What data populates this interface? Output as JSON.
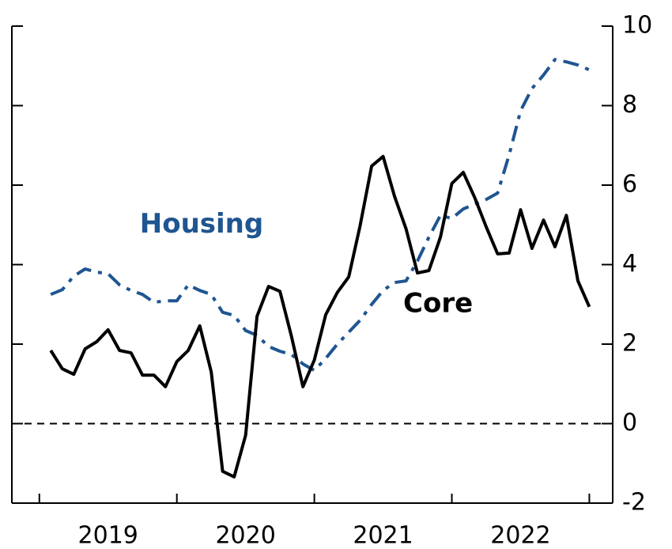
{
  "chart_data": {
    "type": "line",
    "x": [
      2019.083,
      2019.167,
      2019.25,
      2019.333,
      2019.417,
      2019.5,
      2019.583,
      2019.667,
      2019.75,
      2019.833,
      2019.917,
      2020,
      2020.083,
      2020.167,
      2020.25,
      2020.333,
      2020.417,
      2020.5,
      2020.583,
      2020.667,
      2020.75,
      2020.833,
      2020.917,
      2021,
      2021.083,
      2021.167,
      2021.25,
      2021.333,
      2021.417,
      2021.5,
      2021.583,
      2021.667,
      2021.75,
      2021.833,
      2021.917,
      2022,
      2022.083,
      2022.167,
      2022.25,
      2022.333,
      2022.417,
      2022.5,
      2022.583,
      2022.667,
      2022.75,
      2022.833,
      2022.917,
      2023
    ],
    "series": [
      {
        "name": "Housing",
        "color": "#1f5591",
        "style": "dashdot",
        "values": [
          3.25,
          3.37,
          3.71,
          3.89,
          3.81,
          3.77,
          3.49,
          3.35,
          3.25,
          3.05,
          3.09,
          3.09,
          3.49,
          3.35,
          3.25,
          2.8,
          2.72,
          2.34,
          2.22,
          1.94,
          1.82,
          1.74,
          1.5,
          1.34,
          1.64,
          2.0,
          2.3,
          2.6,
          3.0,
          3.35,
          3.55,
          3.59,
          4.09,
          4.69,
          5.24,
          5.16,
          5.4,
          5.52,
          5.64,
          5.8,
          6.76,
          7.87,
          8.43,
          8.77,
          9.16,
          9.1,
          9.02,
          8.9
        ]
      },
      {
        "name": "Core",
        "color": "#000000",
        "style": "solid",
        "values": [
          1.84,
          1.38,
          1.24,
          1.88,
          2.06,
          2.36,
          1.84,
          1.78,
          1.22,
          1.22,
          0.93,
          1.56,
          1.84,
          2.46,
          1.3,
          -1.2,
          -1.34,
          -0.29,
          2.7,
          3.45,
          3.33,
          2.2,
          0.93,
          1.6,
          2.74,
          3.3,
          3.69,
          4.98,
          6.48,
          6.72,
          5.72,
          4.9,
          3.79,
          3.85,
          4.69,
          6.04,
          6.32,
          5.68,
          4.95,
          4.27,
          4.29,
          5.38,
          4.41,
          5.12,
          4.45,
          5.24,
          3.59,
          2.94
        ]
      }
    ],
    "annotations": [
      {
        "text": "Housing",
        "x": 2020.18,
        "y": 5.0,
        "series": 0
      },
      {
        "text": "Core",
        "x": 2021.9,
        "y": 3.0,
        "series": 1
      }
    ],
    "xlim": [
      2018.8,
      2023.17
    ],
    "xticks": [
      2019,
      2020,
      2021,
      2022,
      2023
    ],
    "xtick_labels": [
      {
        "value": 2019.5,
        "label": "2019"
      },
      {
        "value": 2020.5,
        "label": "2020"
      },
      {
        "value": 2021.5,
        "label": "2021"
      },
      {
        "value": 2022.5,
        "label": "2022"
      }
    ],
    "ylim": [
      -2,
      10
    ],
    "yticks": [
      -2,
      0,
      2,
      4,
      6,
      8,
      10
    ],
    "y_axis_side": "right",
    "hlines": [
      0
    ]
  }
}
